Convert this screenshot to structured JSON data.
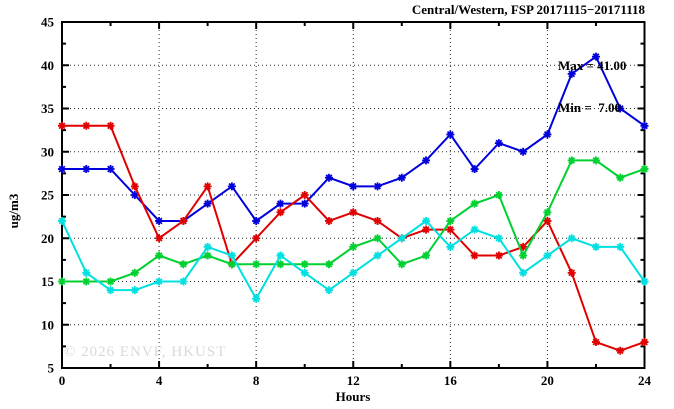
{
  "header": {
    "title": "Central/Western, FSP 20171115−20171118"
  },
  "annotations": {
    "max": "Max = 41.00",
    "min": "Min =  7.00"
  },
  "watermark": "© 2026 ENVF, HKUST",
  "chart_data": {
    "type": "line",
    "title": "Central/Western, FSP 20171115−20171118",
    "xlabel": "Hours",
    "ylabel": "ug/m3",
    "xlim": [
      0,
      24
    ],
    "ylim": [
      5,
      45
    ],
    "xticks": [
      0,
      4,
      8,
      12,
      16,
      20,
      24
    ],
    "yticks": [
      5,
      10,
      15,
      20,
      25,
      30,
      35,
      40,
      45
    ],
    "x_minor_step": 2,
    "y_minor_step": 2.5,
    "grid": true,
    "legend": "none",
    "marker": "asterisk",
    "stat_max": 41.0,
    "stat_min": 7.0,
    "x": [
      0,
      1,
      2,
      3,
      4,
      5,
      6,
      7,
      8,
      9,
      10,
      11,
      12,
      13,
      14,
      15,
      16,
      17,
      18,
      19,
      20,
      21,
      22,
      23,
      24
    ],
    "series": [
      {
        "name": "blue-series",
        "color": "#0000dd",
        "values": [
          28,
          28,
          28,
          25,
          22,
          22,
          24,
          26,
          22,
          24,
          24,
          27,
          26,
          26,
          27,
          29,
          32,
          28,
          31,
          30,
          32,
          39,
          41,
          35,
          33
        ]
      },
      {
        "name": "red-series",
        "color": "#e00000",
        "values": [
          33,
          33,
          33,
          26,
          20,
          22,
          26,
          17,
          20,
          23,
          25,
          22,
          23,
          22,
          20,
          21,
          21,
          18,
          18,
          19,
          22,
          16,
          8,
          7,
          8
        ]
      },
      {
        "name": "green-series",
        "color": "#00d030",
        "values": [
          15,
          15,
          15,
          16,
          18,
          17,
          18,
          17,
          17,
          17,
          17,
          17,
          19,
          20,
          17,
          18,
          22,
          24,
          25,
          18,
          23,
          29,
          29,
          27,
          28
        ]
      },
      {
        "name": "cyan-series",
        "color": "#00e0e0",
        "values": [
          22,
          16,
          14,
          14,
          15,
          15,
          19,
          18,
          13,
          18,
          16,
          14,
          16,
          18,
          20,
          22,
          19,
          21,
          20,
          16,
          18,
          20,
          19,
          19,
          15
        ]
      }
    ]
  }
}
